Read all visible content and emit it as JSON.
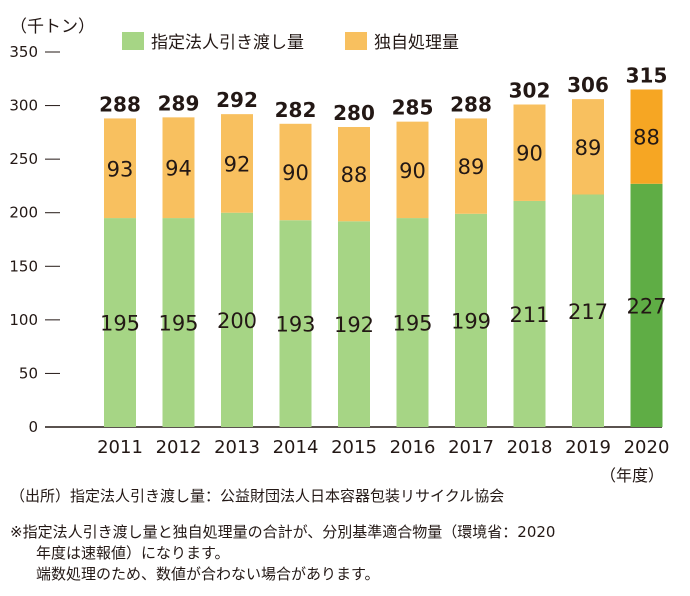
{
  "unit_label": "（千トン）",
  "x_unit_label": "（年度）",
  "legend": {
    "designated": "指定法人引き渡し量",
    "independent": "独自処理量"
  },
  "colors": {
    "designated": "#a6d585",
    "designated_highlight": "#5fad45",
    "independent": "#f8c05f",
    "independent_highlight": "#f6a623",
    "axis": "#231815"
  },
  "notes": {
    "source": "（出所）指定法人引き渡し量：公益財団法人日本容器包装リサイクル協会",
    "remark_line1": "※指定法人引き渡し量と独自処理量の合計が、分別基準適合物量（環境省：2020",
    "remark_line2": "年度は速報値）になります。",
    "remark_line3": "端数処理のため、数値が合わない場合があります。"
  },
  "chart_data": {
    "type": "bar",
    "stacked": true,
    "categories": [
      "2011",
      "2012",
      "2013",
      "2014",
      "2015",
      "2016",
      "2017",
      "2018",
      "2019",
      "2020"
    ],
    "series": [
      {
        "name": "指定法人引き渡し量",
        "values": [
          195,
          195,
          200,
          193,
          192,
          195,
          199,
          211,
          217,
          227
        ]
      },
      {
        "name": "独自処理量",
        "values": [
          93,
          94,
          92,
          90,
          88,
          90,
          89,
          90,
          89,
          88
        ]
      }
    ],
    "totals": [
      288,
      289,
      292,
      282,
      280,
      285,
      288,
      302,
      306,
      315
    ],
    "ylim": [
      0,
      350
    ],
    "yticks": [
      0,
      50,
      100,
      150,
      200,
      250,
      300,
      350
    ],
    "highlight_category": "2020",
    "legend_position": "top",
    "grid": false
  }
}
